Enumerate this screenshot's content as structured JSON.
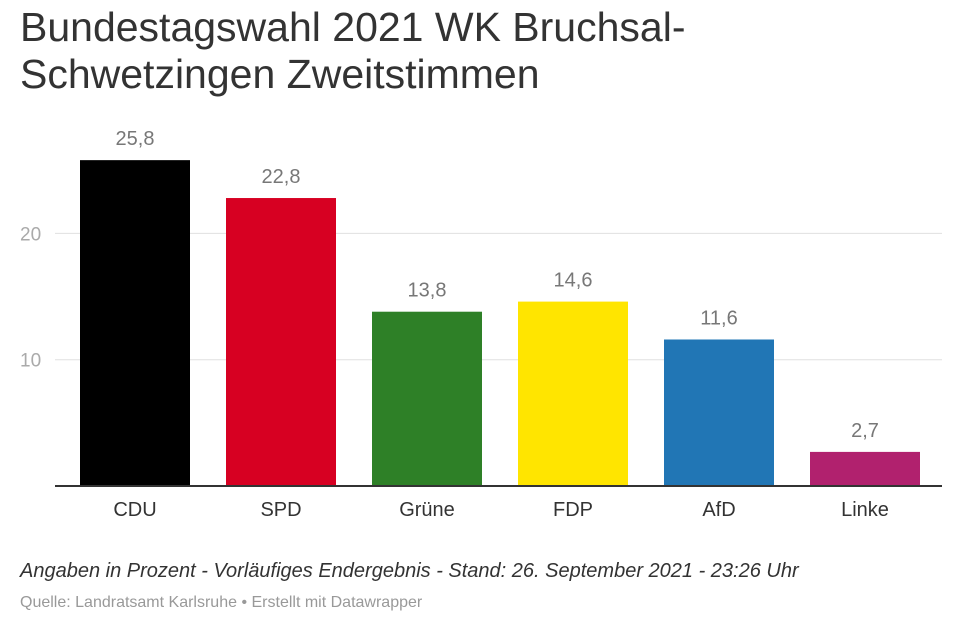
{
  "chart_data": {
    "type": "bar",
    "title": "Bundestagswahl 2021 WK Bruchsal-Schwetzingen Zweitstimmen",
    "categories": [
      "CDU",
      "SPD",
      "Grüne",
      "FDP",
      "AfD",
      "Linke"
    ],
    "values": [
      25.8,
      22.8,
      13.8,
      14.6,
      11.6,
      2.7
    ],
    "value_labels": [
      "25,8",
      "22,8",
      "13,8",
      "14,6",
      "11,6",
      "2,7"
    ],
    "colors": [
      "#000000",
      "#d70022",
      "#2e8027",
      "#ffe500",
      "#2176b5",
      "#b1216e"
    ],
    "ylim": [
      0,
      28
    ],
    "yticks": [
      10,
      20
    ],
    "ytick_labels": [
      "10",
      "20"
    ],
    "grid": true,
    "xlabel": "",
    "ylabel": ""
  },
  "notes": "Angaben in Prozent - Vorläufiges Endergebnis - Stand: 26. September 2021 - 23:26 Uhr",
  "source": "Quelle: Landratsamt Karlsruhe • Erstellt mit Datawrapper"
}
